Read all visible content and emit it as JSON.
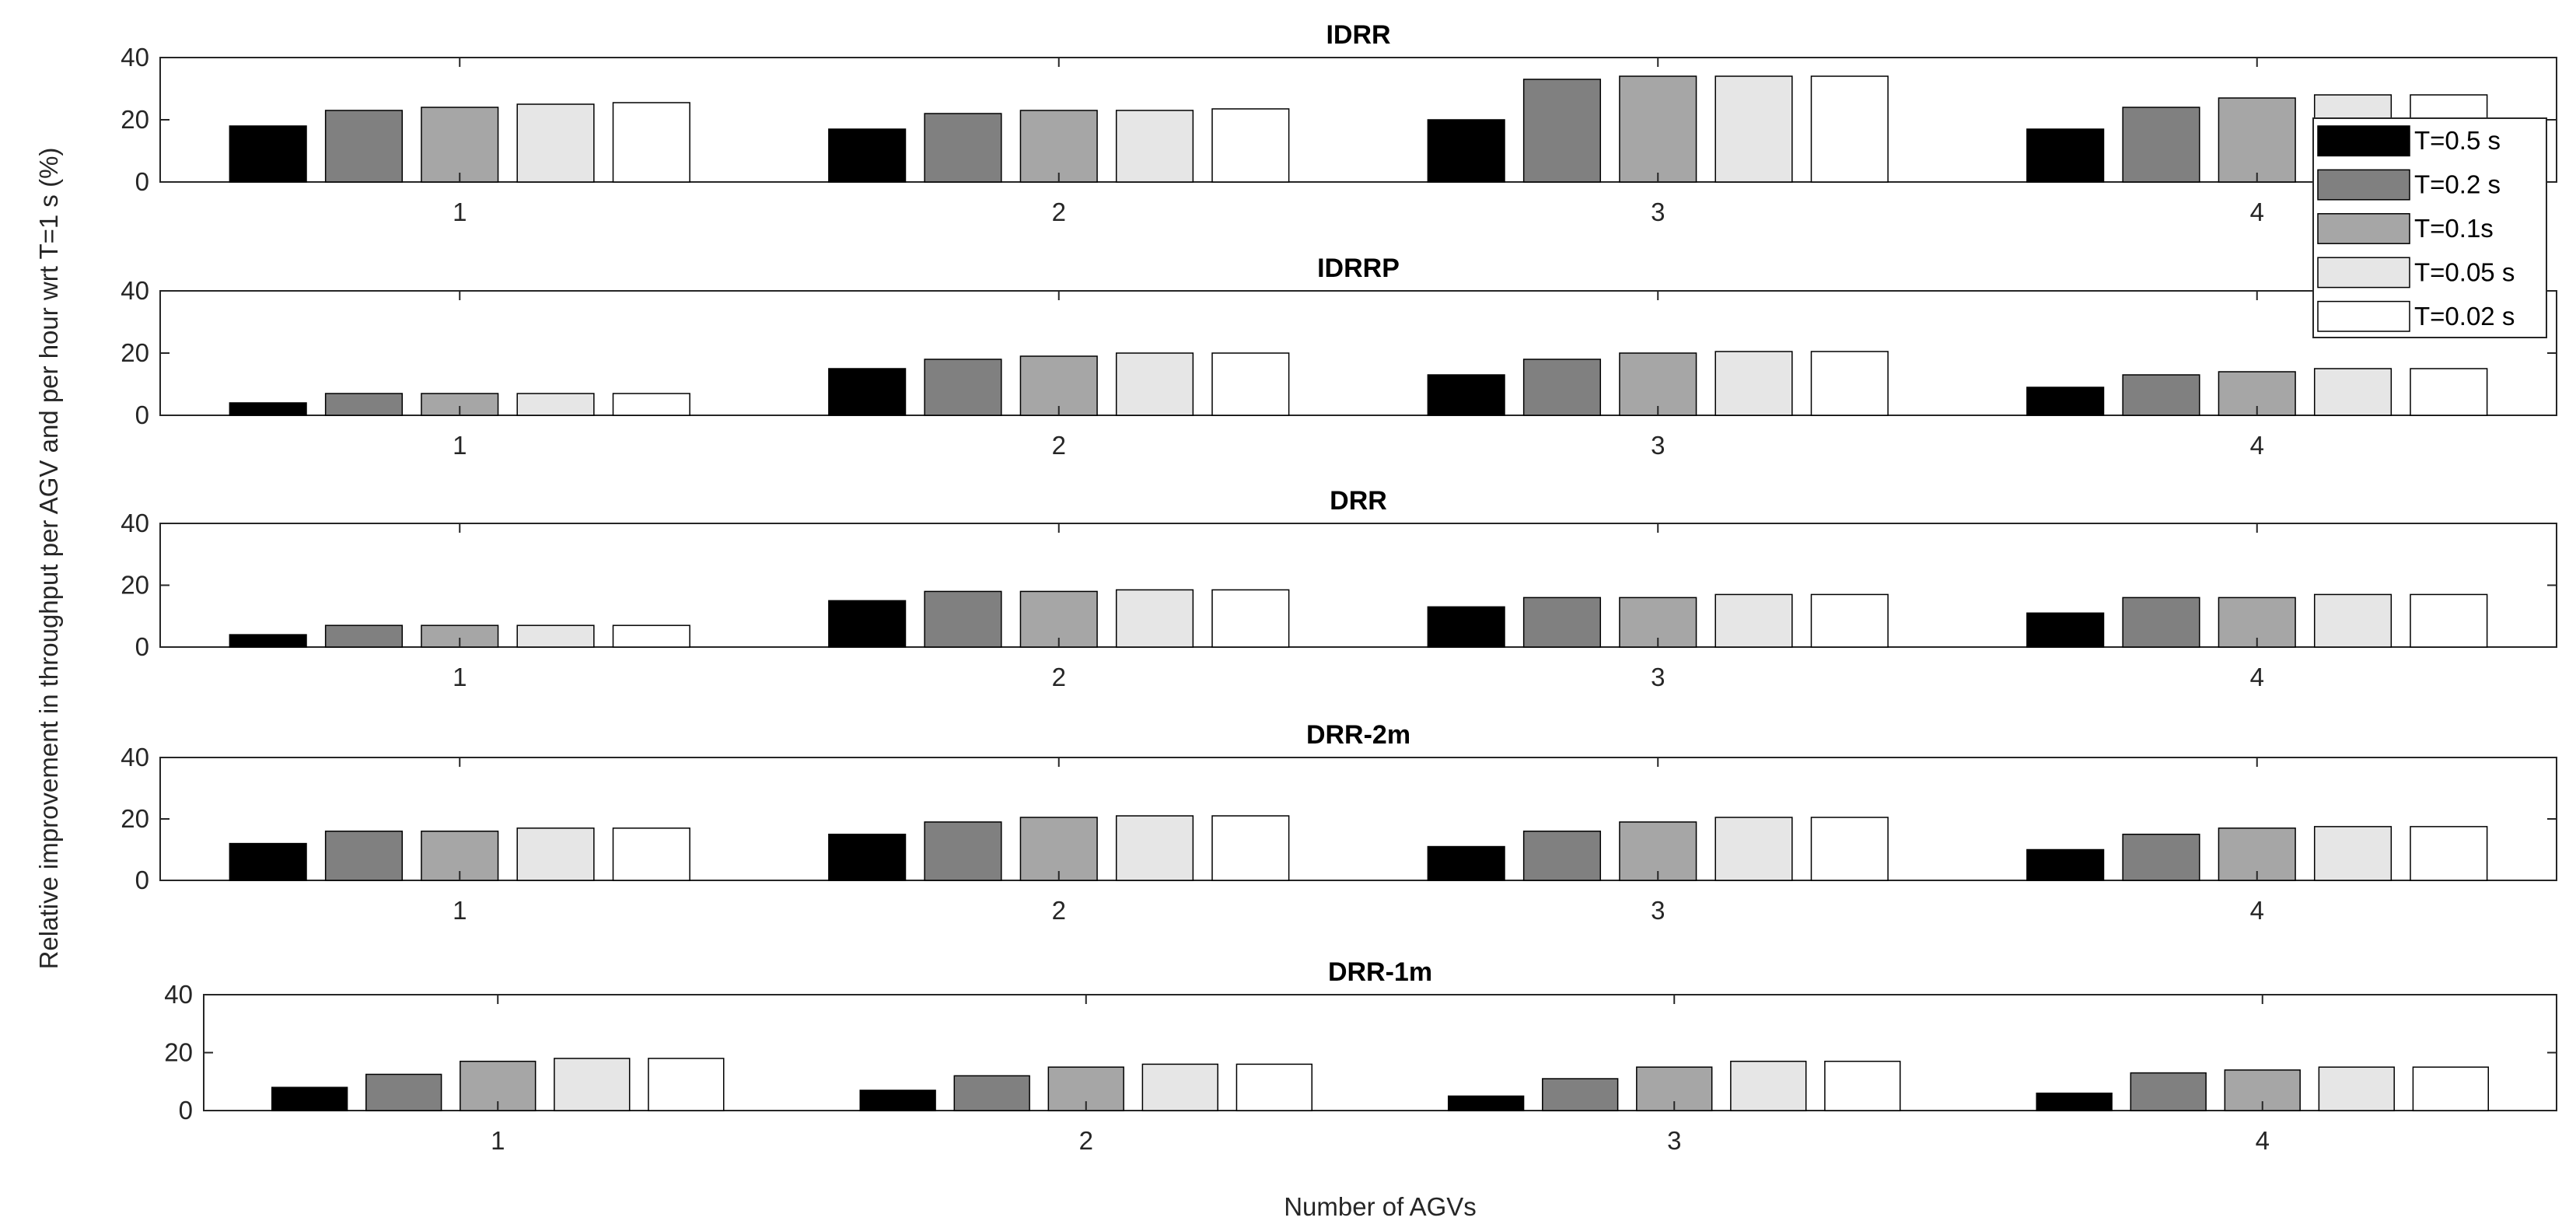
{
  "figure": {
    "ylabel": "Relative improvement in throughput per AGV and per hour wrt T=1 s (%)",
    "xlabel": "Number of AGVs"
  },
  "legend": {
    "placement": "top-right",
    "entries": [
      {
        "label": "T=0.5 s",
        "color": "#000000"
      },
      {
        "label": "T=0.2 s",
        "color": "#808080"
      },
      {
        "label": "T=0.1s",
        "color": "#a6a6a6"
      },
      {
        "label": "T=0.05 s",
        "color": "#e6e6e6"
      },
      {
        "label": "T=0.02 s",
        "color": "#ffffff"
      }
    ]
  },
  "chart_data": [
    {
      "type": "bar",
      "title": "IDRR",
      "categories": [
        "1",
        "2",
        "3",
        "4"
      ],
      "ylim": [
        0,
        40
      ],
      "yticks": [
        "0",
        "20",
        "40"
      ],
      "series": [
        {
          "name": "T=0.5 s",
          "values": [
            18,
            17,
            20,
            17
          ]
        },
        {
          "name": "T=0.2 s",
          "values": [
            23,
            22,
            33,
            24
          ]
        },
        {
          "name": "T=0.1s",
          "values": [
            24,
            23,
            34,
            27
          ]
        },
        {
          "name": "T=0.05 s",
          "values": [
            25,
            23,
            34,
            28
          ]
        },
        {
          "name": "T=0.02 s",
          "values": [
            25.5,
            23.5,
            34,
            28
          ]
        }
      ]
    },
    {
      "type": "bar",
      "title": "IDRRP",
      "categories": [
        "1",
        "2",
        "3",
        "4"
      ],
      "ylim": [
        0,
        40
      ],
      "yticks": [
        "0",
        "20",
        "40"
      ],
      "series": [
        {
          "name": "T=0.5 s",
          "values": [
            4,
            15,
            13,
            9
          ]
        },
        {
          "name": "T=0.2 s",
          "values": [
            7,
            18,
            18,
            13
          ]
        },
        {
          "name": "T=0.1s",
          "values": [
            7,
            19,
            20,
            14
          ]
        },
        {
          "name": "T=0.05 s",
          "values": [
            7,
            20,
            20.5,
            15
          ]
        },
        {
          "name": "T=0.02 s",
          "values": [
            7,
            20,
            20.5,
            15
          ]
        }
      ]
    },
    {
      "type": "bar",
      "title": "DRR",
      "categories": [
        "1",
        "2",
        "3",
        "4"
      ],
      "ylim": [
        0,
        40
      ],
      "yticks": [
        "0",
        "20",
        "40"
      ],
      "series": [
        {
          "name": "T=0.5 s",
          "values": [
            4,
            15,
            13,
            11
          ]
        },
        {
          "name": "T=0.2 s",
          "values": [
            7,
            18,
            16,
            16
          ]
        },
        {
          "name": "T=0.1s",
          "values": [
            7,
            18,
            16,
            16
          ]
        },
        {
          "name": "T=0.05 s",
          "values": [
            7,
            18.5,
            17,
            17
          ]
        },
        {
          "name": "T=0.02 s",
          "values": [
            7,
            18.5,
            17,
            17
          ]
        }
      ]
    },
    {
      "type": "bar",
      "title": "DRR-2m",
      "categories": [
        "1",
        "2",
        "3",
        "4"
      ],
      "ylim": [
        0,
        40
      ],
      "yticks": [
        "0",
        "20",
        "40"
      ],
      "series": [
        {
          "name": "T=0.5 s",
          "values": [
            12,
            15,
            11,
            10
          ]
        },
        {
          "name": "T=0.2 s",
          "values": [
            16,
            19,
            16,
            15
          ]
        },
        {
          "name": "T=0.1s",
          "values": [
            16,
            20.5,
            19,
            17
          ]
        },
        {
          "name": "T=0.05 s",
          "values": [
            17,
            21,
            20.5,
            17.5
          ]
        },
        {
          "name": "T=0.02 s",
          "values": [
            17,
            21,
            20.5,
            17.5
          ]
        }
      ]
    },
    {
      "type": "bar",
      "title": "DRR-1m",
      "categories": [
        "1",
        "2",
        "3",
        "4"
      ],
      "ylim": [
        0,
        40
      ],
      "yticks": [
        "0",
        "20",
        "40"
      ],
      "series": [
        {
          "name": "T=0.5 s",
          "values": [
            8,
            7,
            5,
            6
          ]
        },
        {
          "name": "T=0.2 s",
          "values": [
            12.5,
            12,
            11,
            13
          ]
        },
        {
          "name": "T=0.1s",
          "values": [
            17,
            15,
            15,
            14
          ]
        },
        {
          "name": "T=0.05 s",
          "values": [
            18,
            16,
            17,
            15
          ]
        },
        {
          "name": "T=0.02 s",
          "values": [
            18,
            16,
            17,
            15
          ]
        }
      ]
    }
  ]
}
